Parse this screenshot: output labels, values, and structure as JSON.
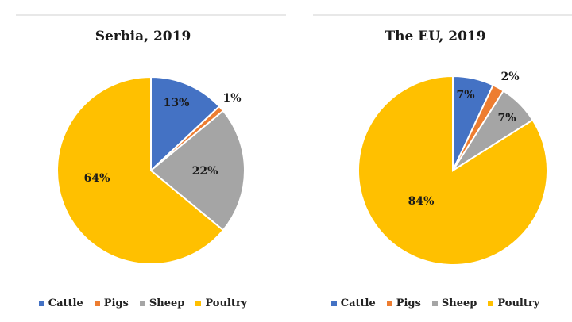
{
  "chart_data": [
    {
      "type": "pie",
      "title": "Serbia, 2019",
      "categories": [
        "Cattle",
        "Pigs",
        "Sheep",
        "Poultry"
      ],
      "values": [
        13,
        1,
        22,
        64
      ],
      "labels": [
        "13%",
        "1%",
        "22%",
        "64%"
      ],
      "colors": [
        "#4472C4",
        "#ED7D31",
        "#A5A5A5",
        "#FFC000"
      ],
      "legend": "bottom"
    },
    {
      "type": "pie",
      "title": "The EU, 2019",
      "categories": [
        "Cattle",
        "Pigs",
        "Sheep",
        "Poultry"
      ],
      "values": [
        7,
        2,
        7,
        84
      ],
      "labels": [
        "7%",
        "2%",
        "7%",
        "84%"
      ],
      "colors": [
        "#4472C4",
        "#ED7D31",
        "#A5A5A5",
        "#FFC000"
      ],
      "legend": "bottom"
    }
  ]
}
